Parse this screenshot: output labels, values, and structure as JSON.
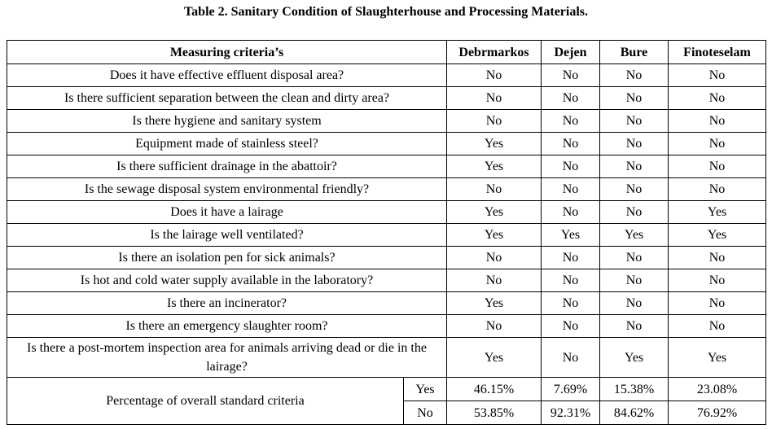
{
  "title": "Table 2. Sanitary Condition of Slaughterhouse and Processing Materials.",
  "headers": [
    "Measuring criteria’s",
    "Debrmarkos",
    "Dejen",
    "Bure",
    "Finoteselam"
  ],
  "rows": [
    {
      "q": "Does it have effective effluent disposal area?",
      "v": [
        "No",
        "No",
        "No",
        "No"
      ]
    },
    {
      "q": "Is there sufficient separation between the clean and dirty area?",
      "v": [
        "No",
        "No",
        "No",
        "No"
      ]
    },
    {
      "q": "Is there hygiene and sanitary system",
      "v": [
        "No",
        "No",
        "No",
        "No"
      ]
    },
    {
      "q": "Equipment made of stainless steel?",
      "v": [
        "Yes",
        "No",
        "No",
        "No"
      ]
    },
    {
      "q": "Is there sufficient drainage in the abattoir?",
      "v": [
        "Yes",
        "No",
        "No",
        "No"
      ]
    },
    {
      "q": "Is the sewage disposal system environmental friendly?",
      "v": [
        "No",
        "No",
        "No",
        "No"
      ]
    },
    {
      "q": "Does it have a lairage",
      "v": [
        "Yes",
        "No",
        "No",
        "Yes"
      ]
    },
    {
      "q": "Is the lairage well ventilated?",
      "v": [
        "Yes",
        "Yes",
        "Yes",
        "Yes"
      ]
    },
    {
      "q": "Is there an isolation pen for sick animals?",
      "v": [
        "No",
        "No",
        "No",
        "No"
      ]
    },
    {
      "q": "Is hot and cold water supply available in the laboratory?",
      "v": [
        "No",
        "No",
        "No",
        "No"
      ]
    },
    {
      "q": "Is there an incinerator?",
      "v": [
        "Yes",
        "No",
        "No",
        "No"
      ]
    },
    {
      "q": "Is there an emergency slaughter room?",
      "v": [
        "No",
        "No",
        "No",
        "No"
      ]
    },
    {
      "q": "Is there a post-mortem inspection area for animals arriving dead or die in the lairage?",
      "v": [
        "Yes",
        "No",
        "Yes",
        "Yes"
      ]
    }
  ],
  "percentage": {
    "label": "Percentage of overall standard criteria",
    "yes_label": "Yes",
    "no_label": "No",
    "yes": [
      "46.15%",
      "7.69%",
      "15.38%",
      "23.08%"
    ],
    "no": [
      "53.85%",
      "92.31%",
      "84.62%",
      "76.92%"
    ]
  }
}
